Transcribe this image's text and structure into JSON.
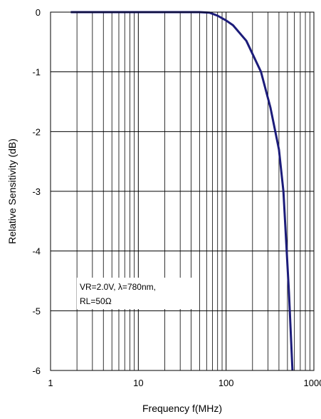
{
  "chart_data": {
    "type": "line",
    "xlabel": "Frequency f(MHz)",
    "ylabel": "Relative Sensitivity (dB)",
    "x_scale": "log",
    "xlim": [
      1,
      1000
    ],
    "ylim": [
      -6,
      0
    ],
    "grid": true,
    "x_ticks": [
      1,
      10,
      100,
      1000
    ],
    "x_tick_labels": [
      "1",
      "10",
      "100",
      "1000"
    ],
    "y_ticks": [
      0,
      -1,
      -2,
      -3,
      -4,
      -5,
      -6
    ],
    "y_tick_labels": [
      "0",
      "-1",
      "-2",
      "-3",
      "-4",
      "-5",
      "-6"
    ],
    "annotation": [
      "VR=2.0V, λ=780nm,",
      "RL=50Ω"
    ],
    "series": [
      {
        "color": "#1c1c7a",
        "x": [
          1.7,
          10,
          30,
          50,
          65,
          80,
          100,
          120,
          170,
          250,
          320,
          400,
          450,
          520,
          570
        ],
        "y": [
          0,
          0,
          0,
          0,
          -0.01,
          -0.06,
          -0.14,
          -0.22,
          -0.48,
          -1.0,
          -1.6,
          -2.3,
          -3.0,
          -4.7,
          -6.0
        ]
      }
    ]
  }
}
